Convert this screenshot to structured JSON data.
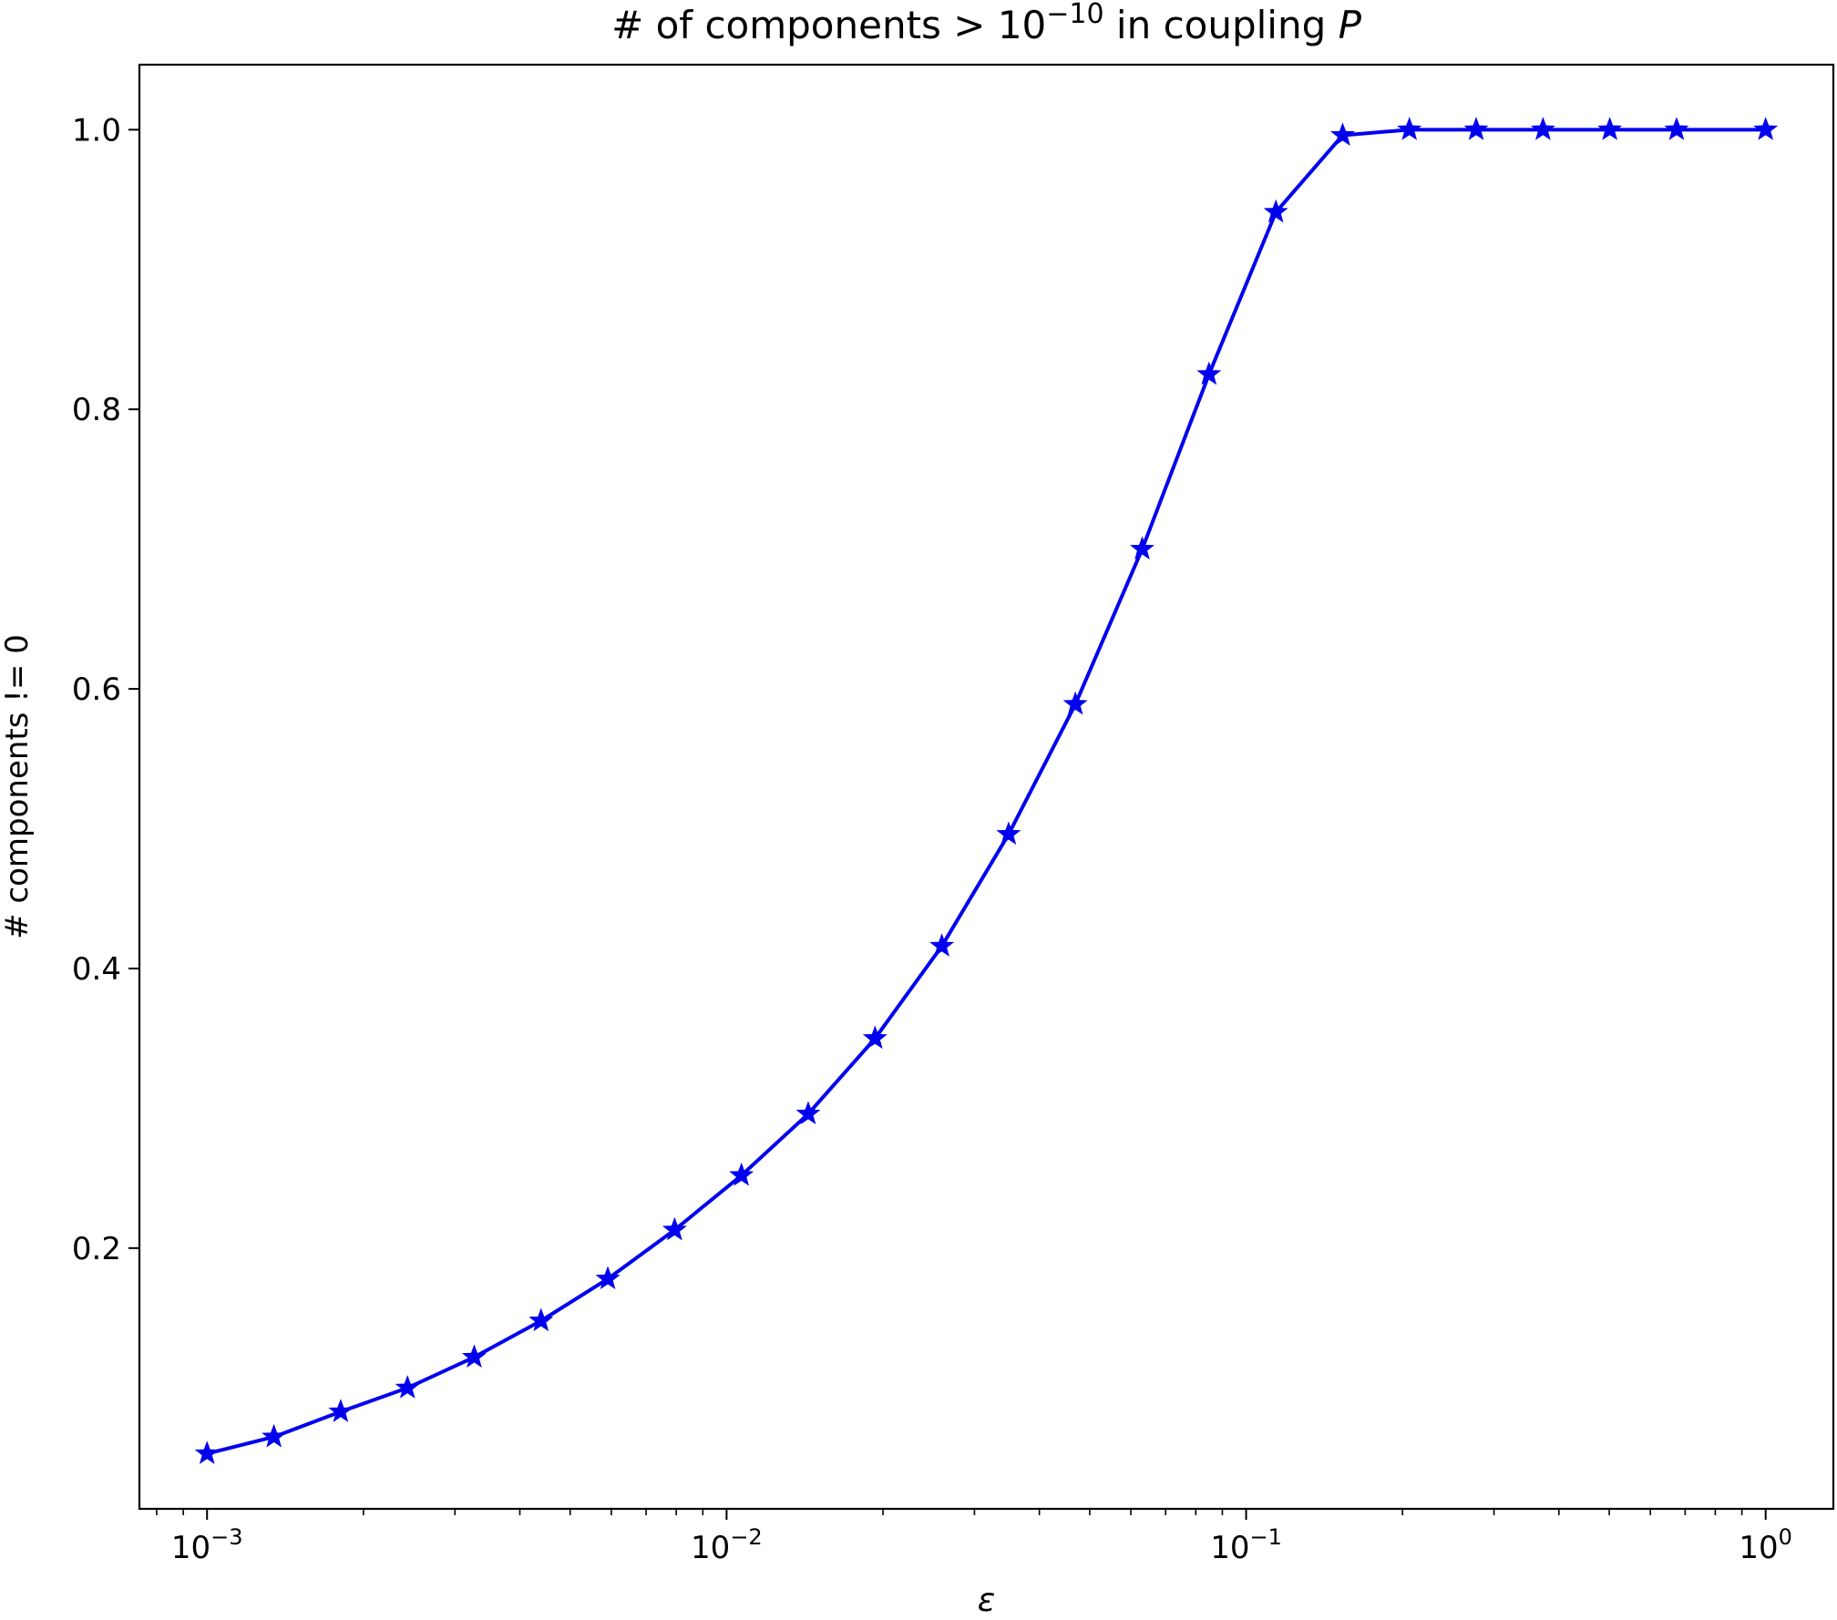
{
  "chart_data": {
    "type": "line",
    "title": {
      "prefix": "# of components > 10",
      "exponent": "−10",
      "middle": " in coupling ",
      "italic": "P"
    },
    "xlabel": "ε",
    "ylabel": "# components != 0",
    "xscale": "log",
    "xlim": [
      0.000741,
      1.35
    ],
    "ylim": [
      0.0135,
      1.0465
    ],
    "grid": false,
    "legend": "none",
    "x_ticks": [
      {
        "value": 0.001,
        "base": "10",
        "exp": "−3"
      },
      {
        "value": 0.01,
        "base": "10",
        "exp": "−2"
      },
      {
        "value": 0.1,
        "base": "10",
        "exp": "−1"
      },
      {
        "value": 1,
        "base": "10",
        "exp": "0"
      }
    ],
    "y_ticks": [
      {
        "value": 0.2,
        "label": "0.2"
      },
      {
        "value": 0.4,
        "label": "0.4"
      },
      {
        "value": 0.6,
        "label": "0.6"
      },
      {
        "value": 0.8,
        "label": "0.8"
      },
      {
        "value": 1.0,
        "label": "1.0"
      }
    ],
    "series": [
      {
        "color": "#0000ee",
        "marker": "star",
        "x": [
          0.001,
          0.001345,
          0.001808,
          0.002431,
          0.003268,
          0.004394,
          0.005908,
          0.007943,
          0.01068,
          0.01436,
          0.01931,
          0.02596,
          0.0349,
          0.04692,
          0.06309,
          0.08483,
          0.1141,
          0.1534,
          0.2062,
          0.2772,
          0.3728,
          0.5012,
          0.6739,
          1.0
        ],
        "y": [
          0.053,
          0.065,
          0.083,
          0.1,
          0.122,
          0.148,
          0.178,
          0.213,
          0.252,
          0.296,
          0.35,
          0.416,
          0.496,
          0.589,
          0.7,
          0.825,
          0.941,
          0.996,
          1.0,
          1.0,
          1.0,
          1.0,
          1.0,
          1.0
        ]
      }
    ]
  }
}
